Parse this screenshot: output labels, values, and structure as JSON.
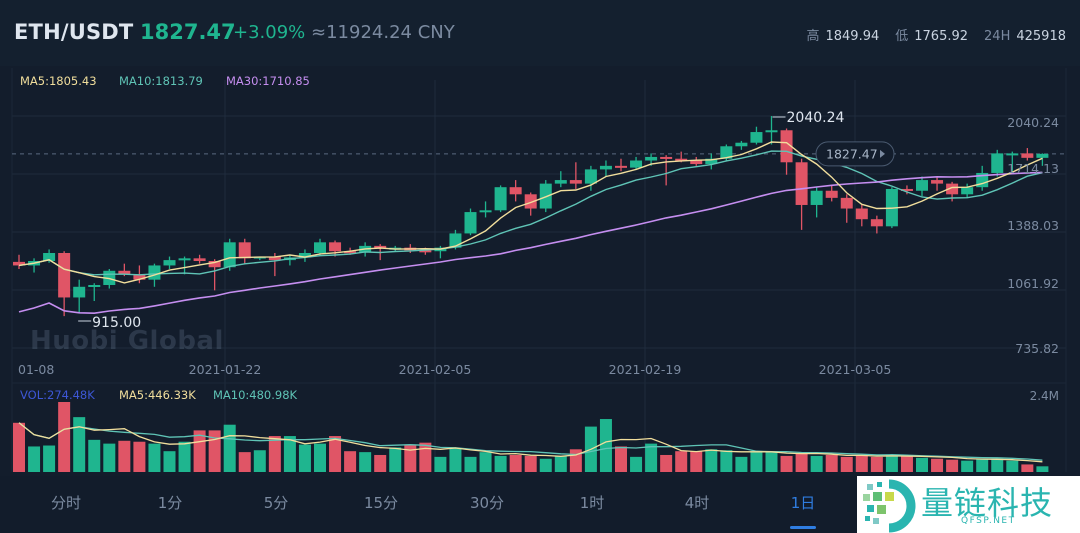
{
  "header": {
    "pair": "ETH/USDT",
    "last_price": "1827.47",
    "change_pct": "+3.09%",
    "cny_value": "≈11924.24 CNY",
    "high_label": "高",
    "high_value": "1849.94",
    "low_label": "低",
    "low_value": "1765.92",
    "vol24_label": "24H",
    "vol24_value": "425918"
  },
  "colors": {
    "up": "#1fb58f",
    "down": "#e05566",
    "ma5": "#f1de9c",
    "ma10": "#5fc4b6",
    "ma30": "#c58ef0",
    "vol_label": "#3d57d6",
    "grid": "#1f2c3d",
    "axis_text": "#7b8aa0",
    "accent": "#2f7de1"
  },
  "main_legend": {
    "ma5": "MA5:1805.43",
    "ma10": "MA10:1813.79",
    "ma30": "MA30:1710.85"
  },
  "volume_legend": {
    "vol": "VOL:274.48K",
    "ma5": "MA5:446.33K",
    "ma10": "MA10:480.98K",
    "axis_max": "2.4M"
  },
  "price_axis": [
    "2040.24",
    "1714.13",
    "1388.03",
    "1061.92",
    "735.82"
  ],
  "current_price_tag": "1827.47",
  "annotations": {
    "max_label": "2040.24",
    "min_label": "915.00"
  },
  "date_axis": [
    "01-08",
    "2021-01-22",
    "2021-02-05",
    "2021-02-19",
    "2021-03-05"
  ],
  "watermark_chart": "Huobi Global",
  "watermark_corner": {
    "title": "量链科技",
    "subtitle": "QFSP.NET"
  },
  "timeframe_tabs": [
    {
      "label": "分时",
      "active": false
    },
    {
      "label": "1分",
      "active": false
    },
    {
      "label": "5分",
      "active": false
    },
    {
      "label": "15分",
      "active": false
    },
    {
      "label": "30分",
      "active": false
    },
    {
      "label": "1时",
      "active": false
    },
    {
      "label": "4时",
      "active": false
    },
    {
      "label": "1日",
      "active": true
    }
  ],
  "chart_data": {
    "type": "candlestick",
    "title": "ETH/USDT 1日",
    "x_start": "2021-01-08",
    "interval": "1d",
    "y_range": [
      735.82,
      2040.24
    ],
    "y_ticks": [
      2040.24,
      1714.13,
      1388.03,
      1061.92,
      735.82
    ],
    "x_ticks": [
      "01-08",
      "2021-01-22",
      "2021-02-05",
      "2021-02-19",
      "2021-03-05"
    ],
    "volume_max": "2.4M",
    "ohlc": [
      [
        1220,
        1260,
        1180,
        1200
      ],
      [
        1200,
        1240,
        1160,
        1225
      ],
      [
        1225,
        1290,
        1215,
        1270
      ],
      [
        1270,
        1280,
        915,
        1020
      ],
      [
        1020,
        1120,
        930,
        1080
      ],
      [
        1080,
        1100,
        1000,
        1090
      ],
      [
        1090,
        1180,
        1070,
        1170
      ],
      [
        1170,
        1210,
        1140,
        1150
      ],
      [
        1150,
        1200,
        1100,
        1120
      ],
      [
        1120,
        1210,
        1080,
        1200
      ],
      [
        1200,
        1250,
        1180,
        1230
      ],
      [
        1230,
        1250,
        1150,
        1240
      ],
      [
        1240,
        1260,
        1210,
        1225
      ],
      [
        1225,
        1235,
        1060,
        1190
      ],
      [
        1190,
        1350,
        1170,
        1330
      ],
      [
        1330,
        1350,
        1210,
        1240
      ],
      [
        1240,
        1250,
        1230,
        1250
      ],
      [
        1250,
        1270,
        1140,
        1230
      ],
      [
        1230,
        1260,
        1200,
        1245
      ],
      [
        1245,
        1290,
        1220,
        1270
      ],
      [
        1270,
        1350,
        1255,
        1330
      ],
      [
        1330,
        1340,
        1250,
        1280
      ],
      [
        1280,
        1300,
        1260,
        1275
      ],
      [
        1275,
        1330,
        1250,
        1310
      ],
      [
        1310,
        1320,
        1230,
        1295
      ],
      [
        1295,
        1310,
        1280,
        1300
      ],
      [
        1300,
        1320,
        1270,
        1285
      ],
      [
        1285,
        1300,
        1260,
        1280
      ],
      [
        1280,
        1310,
        1240,
        1300
      ],
      [
        1300,
        1400,
        1290,
        1380
      ],
      [
        1380,
        1520,
        1370,
        1500
      ],
      [
        1500,
        1560,
        1470,
        1510
      ],
      [
        1510,
        1650,
        1500,
        1640
      ],
      [
        1640,
        1680,
        1560,
        1600
      ],
      [
        1600,
        1610,
        1480,
        1520
      ],
      [
        1520,
        1680,
        1500,
        1660
      ],
      [
        1660,
        1730,
        1640,
        1680
      ],
      [
        1680,
        1780,
        1630,
        1660
      ],
      [
        1660,
        1760,
        1620,
        1740
      ],
      [
        1740,
        1790,
        1700,
        1760
      ],
      [
        1760,
        1800,
        1730,
        1750
      ],
      [
        1750,
        1810,
        1740,
        1790
      ],
      [
        1790,
        1830,
        1760,
        1810
      ],
      [
        1810,
        1820,
        1650,
        1800
      ],
      [
        1800,
        1840,
        1780,
        1790
      ],
      [
        1790,
        1810,
        1760,
        1770
      ],
      [
        1770,
        1830,
        1740,
        1800
      ],
      [
        1800,
        1880,
        1790,
        1870
      ],
      [
        1870,
        1900,
        1850,
        1890
      ],
      [
        1890,
        1980,
        1880,
        1950
      ],
      [
        1950,
        2040.24,
        1880,
        1960
      ],
      [
        1960,
        1970,
        1710,
        1780
      ],
      [
        1780,
        1800,
        1400,
        1540
      ],
      [
        1540,
        1640,
        1470,
        1620
      ],
      [
        1620,
        1650,
        1560,
        1580
      ],
      [
        1580,
        1600,
        1440,
        1520
      ],
      [
        1520,
        1540,
        1420,
        1460
      ],
      [
        1460,
        1480,
        1380,
        1420
      ],
      [
        1420,
        1640,
        1410,
        1630
      ],
      [
        1630,
        1650,
        1600,
        1620
      ],
      [
        1620,
        1700,
        1590,
        1680
      ],
      [
        1680,
        1700,
        1620,
        1660
      ],
      [
        1660,
        1670,
        1560,
        1600
      ],
      [
        1600,
        1660,
        1580,
        1640
      ],
      [
        1640,
        1760,
        1620,
        1720
      ],
      [
        1720,
        1850,
        1700,
        1830
      ],
      [
        1830,
        1840,
        1720,
        1830
      ],
      [
        1830,
        1860,
        1790,
        1805
      ],
      [
        1805,
        1830,
        1760,
        1827.47
      ]
    ],
    "volume": [
      0.52,
      0.27,
      0.28,
      0.74,
      0.58,
      0.34,
      0.3,
      0.33,
      0.32,
      0.3,
      0.22,
      0.32,
      0.44,
      0.44,
      0.5,
      0.21,
      0.23,
      0.38,
      0.38,
      0.29,
      0.3,
      0.38,
      0.22,
      0.21,
      0.18,
      0.26,
      0.29,
      0.31,
      0.16,
      0.25,
      0.16,
      0.21,
      0.17,
      0.18,
      0.17,
      0.14,
      0.17,
      0.24,
      0.48,
      0.56,
      0.27,
      0.16,
      0.3,
      0.18,
      0.22,
      0.22,
      0.24,
      0.23,
      0.16,
      0.22,
      0.22,
      0.17,
      0.2,
      0.17,
      0.18,
      0.16,
      0.17,
      0.16,
      0.18,
      0.17,
      0.15,
      0.14,
      0.13,
      0.12,
      0.14,
      0.14,
      0.12,
      0.08,
      0.06
    ],
    "ma_last": {
      "MA5": 1805.43,
      "MA10": 1813.79,
      "MA30": 1710.85
    }
  }
}
